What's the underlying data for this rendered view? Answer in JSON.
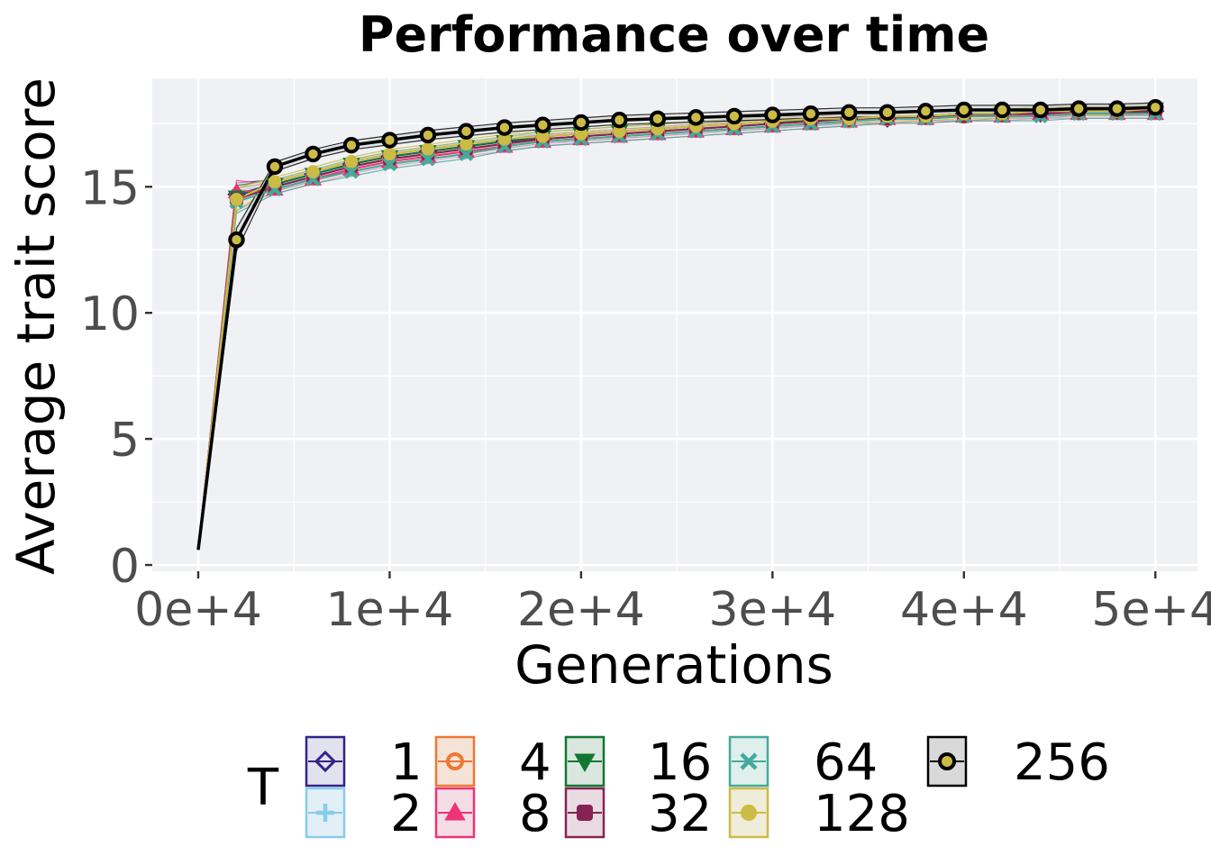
{
  "chart_data": {
    "type": "line",
    "title": "Performance over time",
    "xlabel": "Generations",
    "ylabel": "Average trait score",
    "xlim": [
      -2400,
      52200
    ],
    "ylim": [
      -0.25,
      19.3
    ],
    "x_ticks": [
      0,
      10000,
      20000,
      30000,
      40000,
      50000
    ],
    "x_tick_labels": [
      "0e+4",
      "1e+4",
      "2e+4",
      "3e+4",
      "4e+4",
      "5e+4"
    ],
    "y_ticks": [
      0,
      5,
      10,
      15
    ],
    "y_tick_labels": [
      "0",
      "5",
      "10",
      "15"
    ],
    "grid": true,
    "background": "#f0f1f5",
    "legend": {
      "title": "T",
      "position": "bottom"
    },
    "x": [
      0,
      2000,
      4000,
      6000,
      8000,
      10000,
      12000,
      14000,
      16000,
      18000,
      20000,
      22000,
      24000,
      26000,
      28000,
      30000,
      32000,
      34000,
      36000,
      38000,
      40000,
      42000,
      44000,
      46000,
      48000,
      50000
    ],
    "series": [
      {
        "name": "1",
        "color": "#332288",
        "marker": "diamond",
        "fill": "#e2e1ee",
        "values": [
          0.6,
          14.7,
          15.1,
          15.5,
          15.9,
          16.2,
          16.4,
          16.6,
          16.8,
          16.9,
          17.0,
          17.1,
          17.2,
          17.3,
          17.4,
          17.5,
          17.6,
          17.7,
          17.7,
          17.8,
          17.9,
          17.9,
          17.9,
          18.0,
          18.0,
          18.0
        ]
      },
      {
        "name": "2",
        "color": "#88ccee",
        "marker": "plus",
        "fill": "#e3eff6",
        "values": [
          0.6,
          14.5,
          15.0,
          15.5,
          15.8,
          16.1,
          16.3,
          16.5,
          16.7,
          16.9,
          17.0,
          17.1,
          17.2,
          17.3,
          17.4,
          17.5,
          17.6,
          17.6,
          17.7,
          17.8,
          17.8,
          17.9,
          17.9,
          17.9,
          18.0,
          18.0
        ]
      },
      {
        "name": "4",
        "color": "#ee7733",
        "marker": "circle-o",
        "fill": "#f5e3d8",
        "values": [
          0.6,
          14.6,
          15.0,
          15.4,
          15.8,
          16.1,
          16.3,
          16.5,
          16.7,
          16.9,
          17.0,
          17.1,
          17.2,
          17.3,
          17.4,
          17.5,
          17.6,
          17.7,
          17.7,
          17.8,
          17.8,
          17.9,
          17.9,
          18.0,
          18.0,
          18.0
        ]
      },
      {
        "name": "8",
        "color": "#ee3377",
        "marker": "triangle",
        "fill": "#f5dde5",
        "values": [
          0.6,
          14.8,
          14.9,
          15.3,
          15.7,
          16.0,
          16.2,
          16.4,
          16.6,
          16.8,
          16.9,
          17.0,
          17.1,
          17.2,
          17.3,
          17.4,
          17.5,
          17.6,
          17.7,
          17.7,
          17.8,
          17.8,
          17.9,
          17.9,
          17.9,
          17.9
        ]
      },
      {
        "name": "16",
        "color": "#117733",
        "marker": "triangle-down",
        "fill": "#dbe6de",
        "values": [
          0.6,
          14.6,
          15.1,
          15.5,
          15.9,
          16.2,
          16.4,
          16.6,
          16.8,
          17.0,
          17.1,
          17.2,
          17.3,
          17.4,
          17.5,
          17.6,
          17.6,
          17.7,
          17.8,
          17.8,
          17.9,
          17.9,
          18.0,
          18.0,
          18.0,
          18.1
        ]
      },
      {
        "name": "32",
        "color": "#882255",
        "marker": "square-o",
        "fill": "#e8dce2",
        "values": [
          0.6,
          14.5,
          15.0,
          15.4,
          15.8,
          16.1,
          16.3,
          16.5,
          16.7,
          16.9,
          17.0,
          17.1,
          17.2,
          17.3,
          17.4,
          17.5,
          17.6,
          17.7,
          17.7,
          17.8,
          17.8,
          17.9,
          17.9,
          18.0,
          18.0,
          18.0
        ]
      },
      {
        "name": "64",
        "color": "#44aa99",
        "marker": "cross",
        "fill": "#dfefec",
        "values": [
          0.6,
          14.4,
          14.9,
          15.3,
          15.6,
          15.9,
          16.1,
          16.3,
          16.6,
          16.8,
          16.9,
          17.0,
          17.1,
          17.2,
          17.3,
          17.4,
          17.5,
          17.6,
          17.7,
          17.7,
          17.8,
          17.8,
          17.8,
          17.9,
          17.9,
          17.9
        ]
      },
      {
        "name": "128",
        "color": "#ccbb44",
        "marker": "dot",
        "fill": "#efecd9",
        "values": [
          0.6,
          14.5,
          15.2,
          15.6,
          16.0,
          16.3,
          16.5,
          16.7,
          16.9,
          17.0,
          17.1,
          17.2,
          17.3,
          17.4,
          17.5,
          17.6,
          17.7,
          17.7,
          17.8,
          17.8,
          17.9,
          17.9,
          18.0,
          18.0,
          18.0,
          18.1
        ]
      },
      {
        "name": "256",
        "color": "#000000",
        "marker": "circle-o",
        "fill": "#d9d9d9",
        "values": [
          0.6,
          12.9,
          15.8,
          16.3,
          16.65,
          16.85,
          17.05,
          17.2,
          17.35,
          17.45,
          17.55,
          17.65,
          17.7,
          17.75,
          17.8,
          17.85,
          17.9,
          17.95,
          17.95,
          18.0,
          18.05,
          18.05,
          18.05,
          18.1,
          18.1,
          18.15
        ]
      }
    ]
  }
}
